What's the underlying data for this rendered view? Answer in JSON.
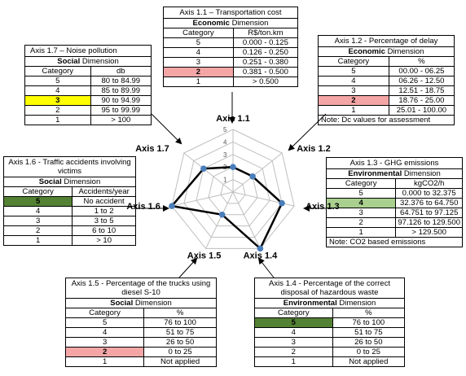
{
  "axis_1_1": {
    "title": "Axis 1.1 – Transportation cost",
    "dimension_bold": "Economic",
    "dimension_rest": " Dimension",
    "header": [
      "Category",
      "R$/ton.km"
    ],
    "rows": [
      [
        "5",
        "0.000 - 0.125"
      ],
      [
        "4",
        "0.126 - 0.250"
      ],
      [
        "3",
        "0.251 - 0.380"
      ],
      [
        "2",
        "0.381 - 0.500"
      ],
      [
        "1",
        "> 0.500"
      ]
    ],
    "highlight_row": 3,
    "highlight_color": "#f4a6a6"
  },
  "axis_1_2": {
    "title": "Axis 1.2 - Percentage of delay",
    "dimension_bold": "Economic",
    "dimension_rest": " Dimension",
    "header": [
      "Category",
      "%"
    ],
    "rows": [
      [
        "5",
        "00.00 - 06.25"
      ],
      [
        "4",
        "06.26 - 12.50"
      ],
      [
        "3",
        "12.51 - 18.75"
      ],
      [
        "2",
        "18.76 - 25.00"
      ],
      [
        "1",
        "25.01 - 100.00"
      ]
    ],
    "highlight_row": 3,
    "highlight_color": "#f4a6a6",
    "note": "Note: Dc values for assessment"
  },
  "axis_1_3": {
    "title": "Axis 1.3 - GHG emissions",
    "dimension_bold": "Environmental",
    "dimension_rest": " Dimension",
    "header": [
      "Category",
      "kgCO2/h"
    ],
    "rows": [
      [
        "5",
        "0.000 to 32.375"
      ],
      [
        "4",
        "32.376 to 64.750"
      ],
      [
        "3",
        "64.751 to 97.125"
      ],
      [
        "2",
        "97.126 to 129.500"
      ],
      [
        "1",
        "> 129.500"
      ]
    ],
    "highlight_row": 1,
    "highlight_color": "#a9d08e",
    "note": "Note: CO2 based emissions"
  },
  "axis_1_4": {
    "title": "Axis 1.4 - Percentage of the correct disposal of hazardous waste",
    "dimension_bold": "Environmental",
    "dimension_rest": " Dimension",
    "header": [
      "Category",
      "%"
    ],
    "rows": [
      [
        "5",
        "76 to 100"
      ],
      [
        "4",
        "51 to 75"
      ],
      [
        "3",
        "26 to 50"
      ],
      [
        "2",
        "0 to 25"
      ],
      [
        "1",
        "Not applied"
      ]
    ],
    "highlight_row": 0,
    "highlight_color": "#548235"
  },
  "axis_1_5": {
    "title": "Axis 1.5 - Percentage of the trucks using diesel S-10",
    "dimension_bold": "Social",
    "dimension_rest": " Dimension",
    "header": [
      "Category",
      "%"
    ],
    "rows": [
      [
        "5",
        "76 to 100"
      ],
      [
        "4",
        "51 to 75"
      ],
      [
        "3",
        "26 to 50"
      ],
      [
        "2",
        "0 to 25"
      ],
      [
        "1",
        "Not applied"
      ]
    ],
    "highlight_row": 3,
    "highlight_color": "#f4a6a6"
  },
  "axis_1_6": {
    "title": "Axis 1.6 - Traffic accidents involving victims",
    "dimension_bold": "Social",
    "dimension_rest": " Dimension",
    "header": [
      "Category",
      "Accidents/year"
    ],
    "rows": [
      [
        "5",
        "No accident"
      ],
      [
        "4",
        "1 to 2"
      ],
      [
        "3",
        "3 to 5"
      ],
      [
        "2",
        "6 to 10"
      ],
      [
        "1",
        "> 10"
      ]
    ],
    "highlight_row": 0,
    "highlight_color": "#548235"
  },
  "axis_1_7": {
    "title": "Axis 1.7 – Noise pollution",
    "dimension_bold": "Social",
    "dimension_rest": " Dimension",
    "header": [
      "Category",
      "db"
    ],
    "rows": [
      [
        "5",
        "80 to 84.99"
      ],
      [
        "4",
        "85 to 89.99"
      ],
      [
        "3",
        "90 to 94.99"
      ],
      [
        "2",
        "95 to 99.99"
      ],
      [
        "1",
        "> 100"
      ]
    ],
    "highlight_row": 2,
    "highlight_color": "#ffff00"
  },
  "radar": {
    "axes": [
      "Axis 1.1",
      "Axis 1.2",
      "Axis 1.3",
      "Axis 1.4",
      "Axis 1.5",
      "Axis 1.6",
      "Axis 1.7"
    ],
    "scale_labels": [
      "1",
      "2",
      "3",
      "4",
      "5"
    ],
    "values": [
      2,
      2,
      4,
      5,
      2,
      5,
      3
    ],
    "max": 5,
    "line_color": "#000000",
    "grid_color": "#bfbfbf",
    "marker_color": "#4a7ebb"
  }
}
